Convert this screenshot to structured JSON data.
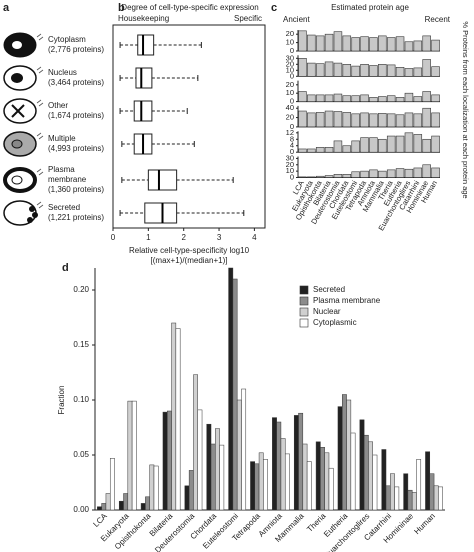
{
  "panel_labels": [
    "a",
    "b",
    "c",
    "d"
  ],
  "localizations": [
    {
      "lines": [
        "Cytoplasm",
        "(2,776 proteins)"
      ]
    },
    {
      "lines": [
        "Nucleus",
        "(3,464 proteins)"
      ]
    },
    {
      "lines": [
        "Other",
        "(1,674 proteins)"
      ]
    },
    {
      "lines": [
        "Multiple",
        "(4,993 proteins)"
      ]
    },
    {
      "lines": [
        "Plasma",
        "membrane",
        "(1,360 proteins)"
      ]
    },
    {
      "lines": [
        "Secreted",
        "(1,221 proteins)"
      ]
    }
  ],
  "chart_data": [
    {
      "type": "box",
      "title": "Degree of cell-type-specific expression",
      "left_label": "Housekeeping",
      "right_label": "Specific",
      "xlabel": [
        "Relative cell-type-specificity log10",
        "[(max+1)/(median+1)]"
      ],
      "xlim": [
        0,
        4.3
      ],
      "xticks": [
        0,
        1,
        2,
        3,
        4
      ],
      "boxes": [
        {
          "whislo": 0.2,
          "q1": 0.7,
          "med": 0.85,
          "q3": 1.15,
          "whishi": 2.5
        },
        {
          "whislo": 0.2,
          "q1": 0.65,
          "med": 0.8,
          "q3": 1.1,
          "whishi": 2.4
        },
        {
          "whislo": 0.2,
          "q1": 0.6,
          "med": 0.8,
          "q3": 1.1,
          "whishi": 2.1
        },
        {
          "whislo": 0.25,
          "q1": 0.6,
          "med": 0.85,
          "q3": 1.1,
          "whishi": 2.3
        },
        {
          "whislo": 0.25,
          "q1": 1.0,
          "med": 1.3,
          "q3": 1.8,
          "whishi": 3.4
        },
        {
          "whislo": 0.2,
          "q1": 0.9,
          "med": 1.4,
          "q3": 1.8,
          "whishi": 3.7
        }
      ]
    },
    {
      "type": "bar-multiples",
      "title": "Estimated protein age",
      "left_label": "Ancient",
      "right_label": "Recent",
      "ylabel": "% Proteins from each localization at each protein age",
      "color": "#c8c8c8",
      "categories": [
        "LCA",
        "Eukaryota",
        "Opisthokonta",
        "Bilateria",
        "Deuterostomia",
        "Chordata",
        "Euteleostomi",
        "Tetrapoda",
        "Amniota",
        "Mammalia",
        "Theria",
        "Eutheria",
        "Euarchontoglires",
        "Catarrhini",
        "Homininae",
        "Human"
      ],
      "panels": [
        {
          "ylim": [
            0,
            25
          ],
          "yticks": [
            0,
            10,
            20
          ],
          "values": [
            24,
            19,
            18,
            20,
            23,
            18,
            16,
            17,
            16,
            18,
            16,
            17,
            11,
            12,
            18,
            13
          ]
        },
        {
          "ylim": [
            0,
            35
          ],
          "yticks": [
            0,
            10,
            20,
            30
          ],
          "values": [
            30,
            22,
            21,
            24,
            22,
            20,
            17,
            20,
            18,
            20,
            19,
            15,
            13,
            14,
            28,
            16
          ]
        },
        {
          "ylim": [
            0,
            25
          ],
          "yticks": [
            0,
            10,
            20
          ],
          "values": [
            12,
            8,
            8,
            8,
            9,
            7,
            7,
            8,
            5,
            6,
            7,
            5,
            10,
            6,
            12,
            8
          ]
        },
        {
          "ylim": [
            0,
            45
          ],
          "yticks": [
            0,
            20,
            40
          ],
          "values": [
            34,
            30,
            31,
            34,
            33,
            31,
            28,
            30,
            28,
            29,
            28,
            26,
            30,
            28,
            40,
            30
          ]
        },
        {
          "ylim": [
            0,
            13
          ],
          "yticks": [
            0,
            4,
            8,
            12
          ],
          "values": [
            2,
            2,
            3,
            3,
            7,
            4,
            7,
            9,
            9,
            8,
            10,
            10,
            12,
            11,
            8,
            10
          ]
        },
        {
          "ylim": [
            0,
            33
          ],
          "yticks": [
            0,
            10,
            20,
            30
          ],
          "values": [
            1,
            1,
            2,
            3,
            5,
            5,
            9,
            10,
            12,
            10,
            12,
            14,
            13,
            15,
            20,
            15
          ]
        }
      ]
    },
    {
      "type": "grouped-bar",
      "ylabel": "Fraction",
      "legend": "upper right",
      "categories": [
        "LCA",
        "Eukaryota",
        "Opisthokonta",
        "Bilateria",
        "Deuterostomia",
        "Chordata",
        "Euteleostomi",
        "Tetrapoda",
        "Amniota",
        "Mammalia",
        "Theria",
        "Eutheria",
        "Euarchontoglires",
        "Catarrhini",
        "Homininae",
        "Human"
      ],
      "ylim": [
        0,
        0.22
      ],
      "yticks": [
        {
          "value": 0,
          "label": "0.00"
        },
        {
          "value": 0.05,
          "label": "0.05"
        },
        {
          "value": 0.1,
          "label": "0.10"
        },
        {
          "value": 0.15,
          "label": "0.15"
        },
        {
          "value": 0.2,
          "label": "0.20"
        }
      ],
      "series": [
        {
          "name": "Secreted",
          "color": "#222222",
          "values": [
            0.003,
            0.008,
            0.006,
            0.089,
            0.022,
            0.078,
            0.22,
            0.044,
            0.084,
            0.086,
            0.062,
            0.094,
            0.082,
            0.055,
            0.033,
            0.053
          ]
        },
        {
          "name": "Plasma membrane",
          "color": "#8c8c8c",
          "values": [
            0.006,
            0.015,
            0.012,
            0.09,
            0.036,
            0.06,
            0.21,
            0.042,
            0.08,
            0.088,
            0.057,
            0.105,
            0.068,
            0.022,
            0.018,
            0.033
          ]
        },
        {
          "name": "Nuclear",
          "color": "#d0d0d0",
          "values": [
            0.015,
            0.099,
            0.041,
            0.17,
            0.123,
            0.074,
            0.1,
            0.052,
            0.065,
            0.06,
            0.052,
            0.1,
            0.062,
            0.033,
            0.016,
            0.022
          ]
        },
        {
          "name": "Cytoplasmic",
          "color": "#ffffff",
          "values": [
            0.047,
            0.099,
            0.04,
            0.165,
            0.091,
            0.059,
            0.11,
            0.046,
            0.051,
            0.044,
            0.038,
            0.07,
            0.05,
            0.021,
            0.046,
            0.021
          ]
        }
      ]
    }
  ]
}
